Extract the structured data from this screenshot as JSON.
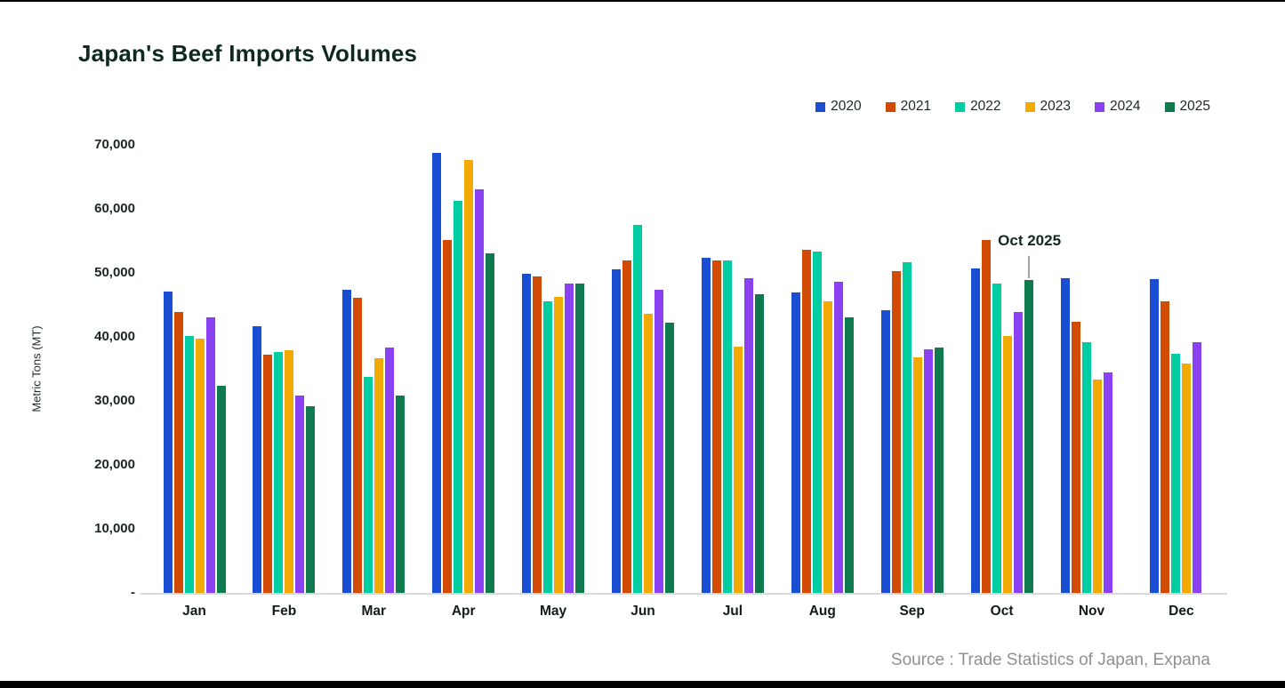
{
  "title": "Japan's Beef Imports Volumes",
  "y_axis": {
    "label": "Metric Tons (MT)",
    "ticks": [
      "70,000",
      "60,000",
      "50,000",
      "40,000",
      "30,000",
      "20,000",
      "10,000",
      "-"
    ]
  },
  "source": "Source : Trade Statistics of Japan, Expana",
  "chart_data": {
    "type": "bar",
    "title": "Japan's Beef Imports Volumes",
    "xlabel": "",
    "ylabel": "Metric Tons (MT)",
    "ylim": [
      0,
      70000
    ],
    "y_tick_step": 10000,
    "grid": false,
    "legend_position": "top-right",
    "categories": [
      "Jan",
      "Feb",
      "Mar",
      "Apr",
      "May",
      "Jun",
      "Jul",
      "Aug",
      "Sep",
      "Oct",
      "Nov",
      "Dec"
    ],
    "series": [
      {
        "name": "2020",
        "color": "#1a4ed2",
        "values": [
          47100,
          41700,
          47400,
          68800,
          49800,
          50500,
          52400,
          47000,
          44200,
          50700,
          49100,
          49000
        ]
      },
      {
        "name": "2021",
        "color": "#d14b05",
        "values": [
          43900,
          37200,
          46100,
          55100,
          49500,
          52000,
          51900,
          53600,
          50300,
          55100,
          42400,
          45500
        ]
      },
      {
        "name": "2022",
        "color": "#01cda2",
        "values": [
          40100,
          37600,
          33800,
          61300,
          45600,
          57500,
          51900,
          53400,
          51700,
          48300,
          39200,
          37300
        ]
      },
      {
        "name": "2023",
        "color": "#f2a902",
        "values": [
          39700,
          37900,
          36600,
          67600,
          46200,
          43600,
          38500,
          45500,
          36800,
          40200,
          33300,
          35900
        ]
      },
      {
        "name": "2024",
        "color": "#8a41f1",
        "values": [
          43100,
          30900,
          38300,
          63000,
          48400,
          47400,
          49200,
          48600,
          38000,
          43900,
          34500,
          39100
        ]
      },
      {
        "name": "2025",
        "color": "#0f7a4d",
        "values": [
          32400,
          29200,
          30800,
          53000,
          48300,
          42200,
          46700,
          43100,
          38300,
          48900,
          null,
          null
        ]
      }
    ],
    "annotations": [
      {
        "text": "Oct 2025",
        "target_series": "2025",
        "target_category": "Oct"
      }
    ]
  }
}
